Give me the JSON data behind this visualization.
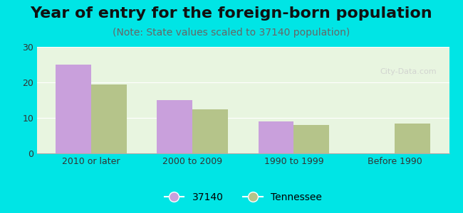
{
  "title": "Year of entry for the foreign-born population",
  "subtitle": "(Note: State values scaled to 37140 population)",
  "categories": [
    "2010 or later",
    "2000 to 2009",
    "1990 to 1999",
    "Before 1990"
  ],
  "series_37140": [
    25.0,
    15.0,
    9.0,
    0.0
  ],
  "series_tennessee": [
    19.5,
    12.5,
    8.0,
    8.5
  ],
  "color_37140": "#c9a0dc",
  "color_tennessee": "#b5c48a",
  "outer_bg": "#00e5e5",
  "plot_bg": "#e8f5e0",
  "ylim": [
    0,
    30
  ],
  "yticks": [
    0,
    10,
    20,
    30
  ],
  "bar_width": 0.35,
  "legend_label_37140": "37140",
  "legend_label_tennessee": "Tennessee",
  "title_fontsize": 16,
  "subtitle_fontsize": 10,
  "tick_fontsize": 9,
  "legend_fontsize": 10
}
